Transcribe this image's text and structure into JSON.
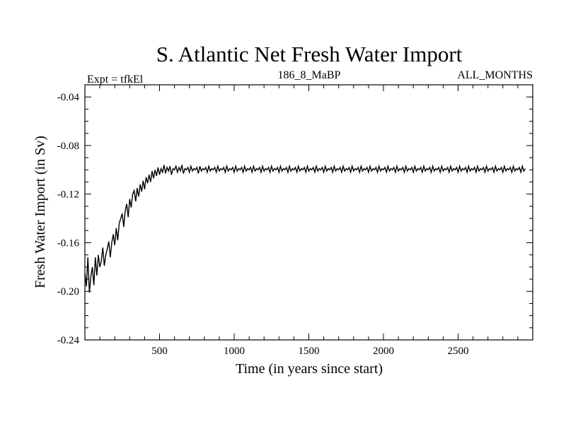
{
  "chart_data": {
    "type": "line",
    "title": "S. Atlantic Net Fresh Water Import",
    "subtitle_left": "Expt = tfkEl",
    "subtitle_center": "186_8_MaBP",
    "subtitle_right": "ALL_MONTHS",
    "xlabel": "Time (in years since start)",
    "ylabel": "Fresh Water Import (in Sv)",
    "xlim": [
      0,
      3000
    ],
    "ylim": [
      -0.24,
      -0.03
    ],
    "xticks": [
      500,
      1000,
      1500,
      2000,
      2500
    ],
    "xtick_labels": [
      "500",
      "1000",
      "1500",
      "2000",
      "2500"
    ],
    "yticks": [
      -0.04,
      -0.08,
      -0.12,
      -0.16,
      -0.2,
      -0.24
    ],
    "ytick_labels": [
      "-0.04",
      "-0.08",
      "-0.12",
      "-0.16",
      "-0.20",
      "-0.24"
    ],
    "grid": false,
    "legend": "none",
    "line_color": "#000000",
    "series": [
      {
        "x_start": 0,
        "x_step": 10,
        "values": [
          -0.185,
          -0.196,
          -0.172,
          -0.201,
          -0.188,
          -0.18,
          -0.195,
          -0.172,
          -0.187,
          -0.17,
          -0.18,
          -0.175,
          -0.164,
          -0.179,
          -0.17,
          -0.165,
          -0.159,
          -0.172,
          -0.16,
          -0.153,
          -0.162,
          -0.148,
          -0.158,
          -0.144,
          -0.14,
          -0.136,
          -0.147,
          -0.134,
          -0.128,
          -0.139,
          -0.124,
          -0.131,
          -0.12,
          -0.117,
          -0.126,
          -0.115,
          -0.122,
          -0.112,
          -0.118,
          -0.109,
          -0.116,
          -0.106,
          -0.111,
          -0.104,
          -0.11,
          -0.101,
          -0.107,
          -0.1,
          -0.105,
          -0.098,
          -0.104,
          -0.099,
          -0.102,
          -0.096,
          -0.103,
          -0.098,
          -0.101,
          -0.097,
          -0.104,
          -0.099,
          -0.1,
          -0.097,
          -0.102,
          -0.098,
          -0.101,
          -0.096,
          -0.103,
          -0.099,
          -0.1,
          -0.098,
          -0.102,
          -0.097,
          -0.101,
          -0.099,
          -0.1,
          -0.098,
          -0.103,
          -0.097,
          -0.101,
          -0.099,
          -0.1,
          -0.098,
          -0.102,
          -0.097,
          -0.101,
          -0.099,
          -0.1,
          -0.098,
          -0.102,
          -0.097,
          -0.101,
          -0.099,
          -0.1,
          -0.098,
          -0.102,
          -0.097,
          -0.101,
          -0.099,
          -0.1,
          -0.098,
          -0.102,
          -0.097,
          -0.101,
          -0.099,
          -0.1,
          -0.098,
          -0.102,
          -0.097,
          -0.101,
          -0.099,
          -0.1,
          -0.098,
          -0.102,
          -0.097,
          -0.101,
          -0.099,
          -0.1,
          -0.098,
          -0.102,
          -0.097,
          -0.101,
          -0.099,
          -0.1,
          -0.098,
          -0.102,
          -0.097,
          -0.101,
          -0.099,
          -0.1,
          -0.098,
          -0.102,
          -0.097,
          -0.101,
          -0.099,
          -0.1,
          -0.098,
          -0.102,
          -0.097,
          -0.101,
          -0.099,
          -0.1,
          -0.098,
          -0.102,
          -0.097,
          -0.101,
          -0.099,
          -0.1,
          -0.098,
          -0.102,
          -0.097,
          -0.101,
          -0.099,
          -0.1,
          -0.098,
          -0.102,
          -0.097,
          -0.101,
          -0.099,
          -0.1,
          -0.098,
          -0.102,
          -0.097,
          -0.101,
          -0.099,
          -0.1,
          -0.098,
          -0.102,
          -0.097,
          -0.101,
          -0.099,
          -0.1,
          -0.098,
          -0.102,
          -0.097,
          -0.101,
          -0.099,
          -0.1,
          -0.098,
          -0.102,
          -0.097,
          -0.101,
          -0.099,
          -0.1,
          -0.098,
          -0.102,
          -0.097,
          -0.101,
          -0.099,
          -0.1,
          -0.098,
          -0.102,
          -0.097,
          -0.101,
          -0.099,
          -0.1,
          -0.098,
          -0.102,
          -0.097,
          -0.101,
          -0.099,
          -0.1,
          -0.098,
          -0.102,
          -0.097,
          -0.101,
          -0.099,
          -0.1,
          -0.098,
          -0.102,
          -0.097,
          -0.101,
          -0.099,
          -0.1,
          -0.098,
          -0.102,
          -0.097,
          -0.101,
          -0.099,
          -0.1,
          -0.098,
          -0.102,
          -0.097,
          -0.101,
          -0.099,
          -0.1,
          -0.098,
          -0.102,
          -0.097,
          -0.101,
          -0.099,
          -0.1,
          -0.098,
          -0.102,
          -0.097,
          -0.101,
          -0.099,
          -0.1,
          -0.098,
          -0.102,
          -0.097,
          -0.101,
          -0.099,
          -0.1,
          -0.098,
          -0.102,
          -0.097,
          -0.101,
          -0.099,
          -0.1,
          -0.098,
          -0.102,
          -0.097,
          -0.101,
          -0.099,
          -0.1,
          -0.098,
          -0.102,
          -0.097,
          -0.101,
          -0.099,
          -0.1,
          -0.098,
          -0.102,
          -0.097,
          -0.101,
          -0.099,
          -0.1,
          -0.098,
          -0.102,
          -0.097,
          -0.101,
          -0.099,
          -0.1,
          -0.098,
          -0.102,
          -0.097,
          -0.101,
          -0.099,
          -0.1,
          -0.098,
          -0.102,
          -0.097,
          -0.101,
          -0.099,
          -0.1,
          -0.098,
          -0.102,
          -0.097,
          -0.101,
          -0.099,
          -0.1,
          -0.098,
          -0.102,
          -0.097,
          -0.101,
          -0.099
        ]
      }
    ]
  }
}
